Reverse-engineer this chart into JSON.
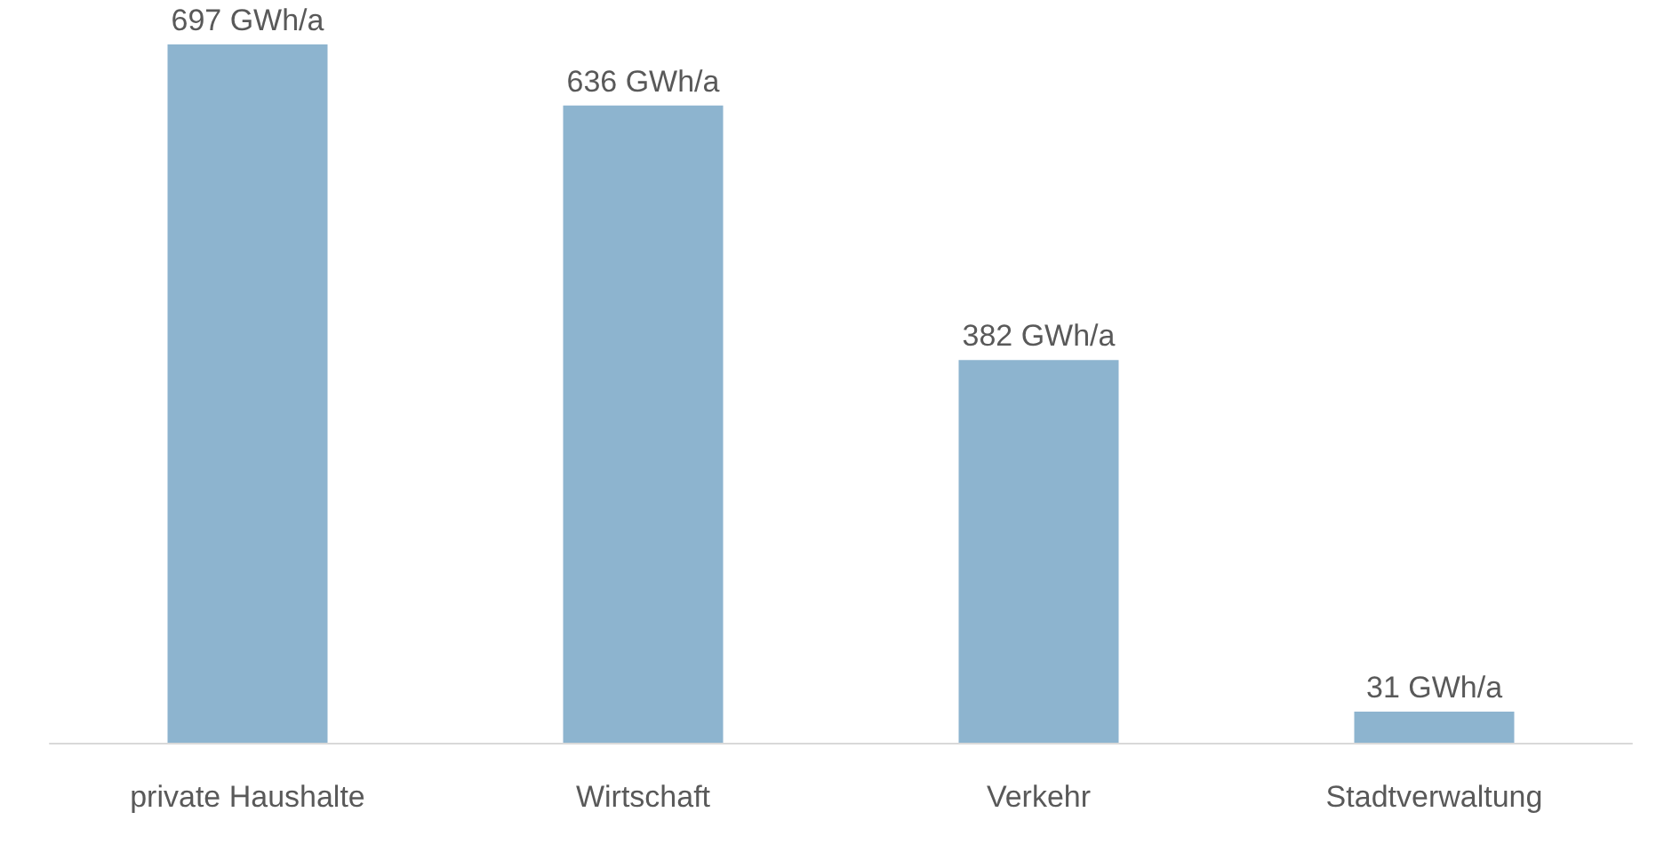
{
  "chart_data": {
    "type": "bar",
    "categories": [
      "private Haushalte",
      "Wirtschaft",
      "Verkehr",
      "Stadtverwaltung"
    ],
    "values": [
      697,
      636,
      382,
      31
    ],
    "color": "#8db4cf",
    "value_labels": [
      "697 GWh/a",
      "636 GWh/a",
      "382 GWh/a",
      "31 GWh/a"
    ]
  }
}
